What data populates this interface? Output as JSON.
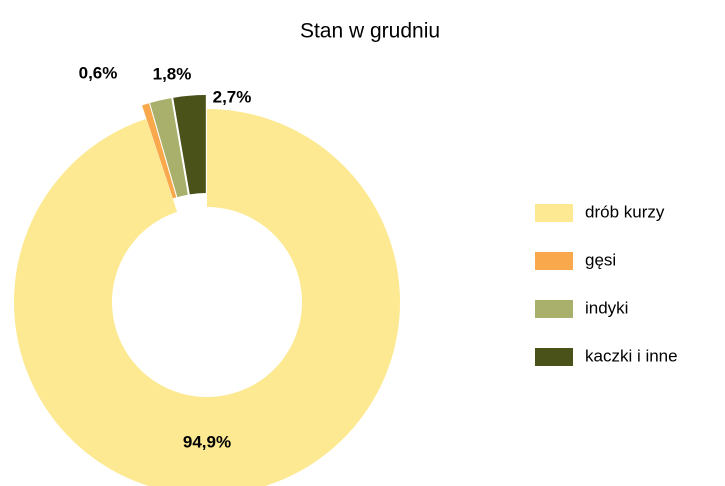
{
  "chart_data": {
    "type": "donut",
    "title": "Stan w grudniu",
    "categories": [
      "drób kurzy",
      "gęsi",
      "indyki",
      "kaczki i inne"
    ],
    "values": [
      94.9,
      0.6,
      1.8,
      2.7
    ],
    "value_labels": [
      "94,9%",
      "0,6%",
      "1,8%",
      "2,7%"
    ],
    "colors": [
      "#fde992",
      "#f9a84b",
      "#a9b06b",
      "#4a5119"
    ],
    "legend": "right"
  }
}
